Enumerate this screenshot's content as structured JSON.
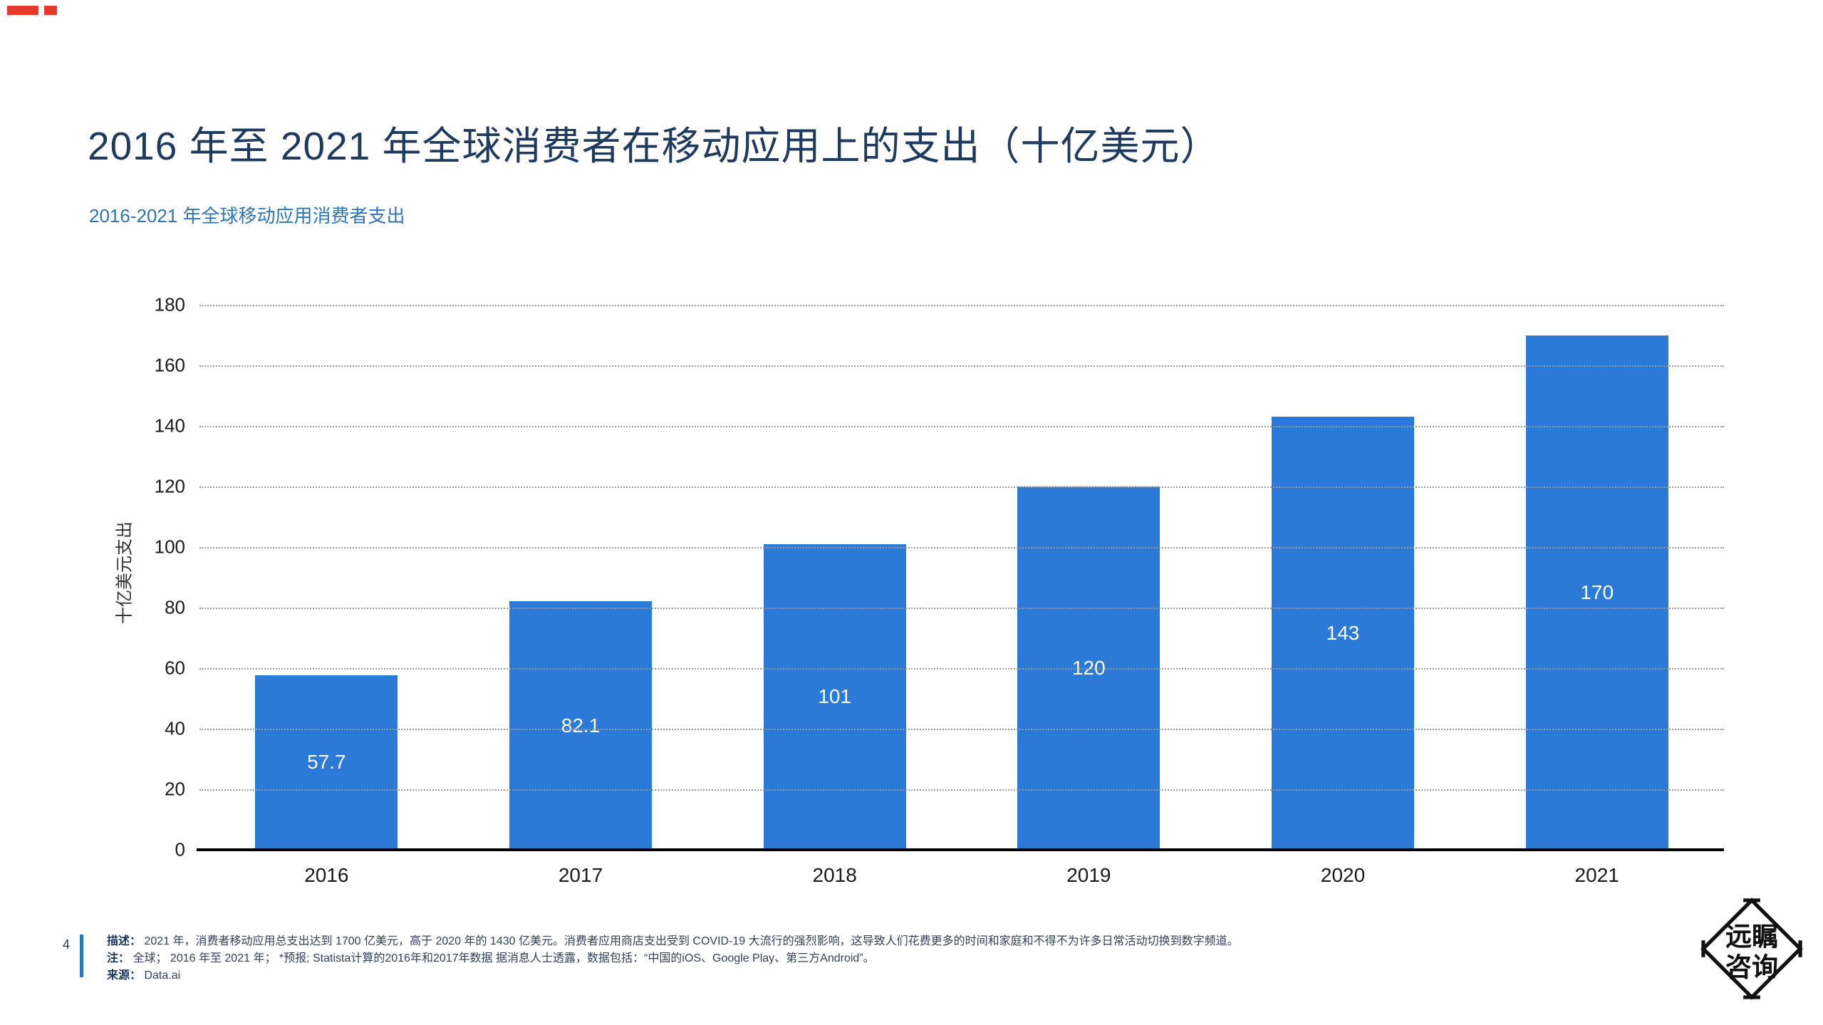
{
  "page": {
    "title": "2016 年至 2021 年全球消费者在移动应用上的支出（十亿美元）",
    "subtitle": "2016-2021 年全球移动应用消费者支出",
    "page_number": "4"
  },
  "chart_data": {
    "type": "bar",
    "title": "2016 年至 2021 年全球消费者在移动应用上的支出（十亿美元）",
    "categories": [
      "2016",
      "2017",
      "2018",
      "2019",
      "2020",
      "2021"
    ],
    "values": [
      57.7,
      82.1,
      101,
      120,
      143,
      170
    ],
    "value_labels": [
      "57.7",
      "82.1",
      "101",
      "120",
      "143",
      "170"
    ],
    "xlabel": "",
    "ylabel": "十亿美元支出",
    "ylim": [
      0,
      180
    ],
    "ytick_step": 20,
    "grid": "horizontal-dotted",
    "legend": "none",
    "bar_color": "#2b7ad8",
    "value_label_color": "#ffffff"
  },
  "footer": {
    "description_label": "描述：",
    "description_text": "2021 年，消费者移动应用总支出达到 1700 亿美元，高于 2020 年的 1430 亿美元。消费者应用商店支出受到 COVID-19 大流行的强烈影响，这导致人们花费更多的时间和家庭和不得不为许多日常活动切换到数字频道。",
    "note_label": "注：",
    "note_text": "全球； 2016 年至 2021 年； *预报; Statista计算的2016年和2017年数据 据消息人士透露，数据包括：“中国的iOS、Google Play、第三方Android”。",
    "source_label": "来源：",
    "source_text": "Data.ai"
  },
  "logo": {
    "line1": "远瞩",
    "line2": "咨询"
  },
  "colors": {
    "title": "#1e3a5f",
    "subtitle": "#2e75b6",
    "bar": "#2b7ad8",
    "accent_red": "#e8392e",
    "footer_accent": "#2e75b6",
    "gridline": "#9a9a9a"
  }
}
